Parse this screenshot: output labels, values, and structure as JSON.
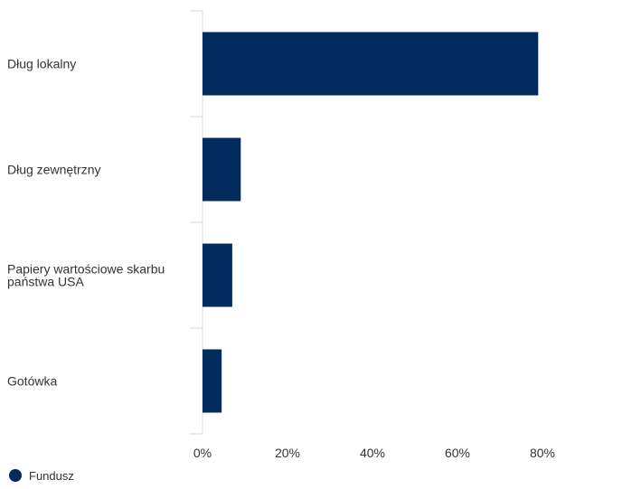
{
  "chart_data": {
    "type": "bar",
    "orientation": "horizontal",
    "categories": [
      [
        "Dług lokalny"
      ],
      [
        "Dług zewnętrzny"
      ],
      [
        "Papiery wartościowe skarbu",
        "państwa USA"
      ],
      [
        "Gotówka"
      ]
    ],
    "series": [
      {
        "name": "Fundusz",
        "values": [
          79,
          9,
          7,
          4.5
        ],
        "color": "#002b5c"
      }
    ],
    "xlim": [
      0,
      100
    ],
    "ticks": [
      0,
      20,
      40,
      60,
      80
    ],
    "tick_labels": [
      "0%",
      "20%",
      "40%",
      "60%",
      "80%"
    ],
    "grid": false,
    "legend_position": "bottom-left",
    "colors": {
      "bar": "#002b5c",
      "axis": "#d4d8e0",
      "text": "#333333"
    }
  }
}
